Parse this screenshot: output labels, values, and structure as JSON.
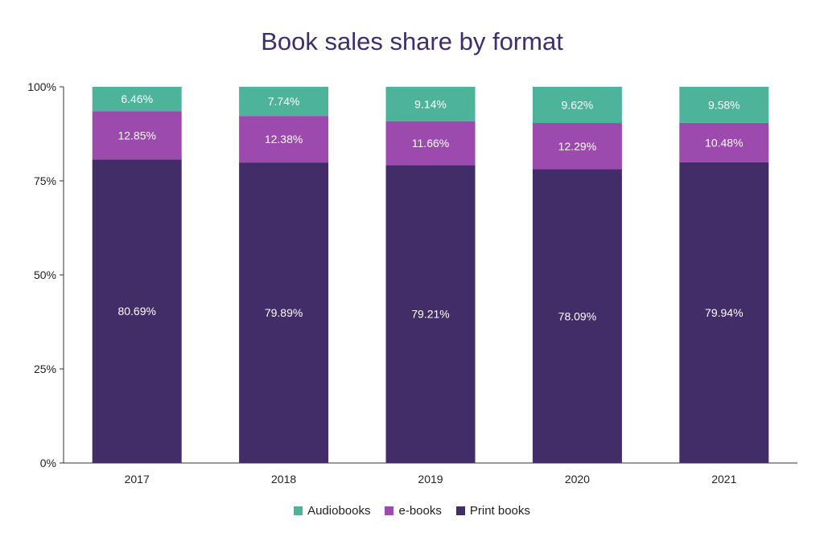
{
  "chart_data": {
    "type": "bar",
    "stacked": true,
    "title": "Book sales share by format",
    "categories": [
      "2017",
      "2018",
      "2019",
      "2020",
      "2021"
    ],
    "series": [
      {
        "name": "Print books",
        "color": "#432d69",
        "values": [
          80.69,
          79.89,
          79.21,
          78.09,
          79.94
        ],
        "labels": [
          "80.69%",
          "79.89%",
          "79.21%",
          "78.09%",
          "79.94%"
        ]
      },
      {
        "name": "e-books",
        "color": "#9c4aae",
        "values": [
          12.85,
          12.38,
          11.66,
          12.29,
          10.48
        ],
        "labels": [
          "12.85%",
          "12.38%",
          "11.66%",
          "12.29%",
          "10.48%"
        ]
      },
      {
        "name": "Audiobooks",
        "color": "#4db39b",
        "values": [
          6.46,
          7.74,
          9.14,
          9.62,
          9.58
        ],
        "labels": [
          "6.46%",
          "7.74%",
          "9.14%",
          "9.62%",
          "9.58%"
        ]
      }
    ],
    "ylim": [
      0,
      100
    ],
    "yticks": [
      0,
      25,
      50,
      75,
      100
    ],
    "ytick_labels": [
      "0%",
      "25%",
      "50%",
      "75%",
      "100%"
    ],
    "grid": false,
    "legend_position": "bottom"
  },
  "legend": [
    {
      "name": "Audiobooks",
      "color": "#4db39b"
    },
    {
      "name": "e-books",
      "color": "#9c4aae"
    },
    {
      "name": "Print books",
      "color": "#432d69"
    }
  ]
}
